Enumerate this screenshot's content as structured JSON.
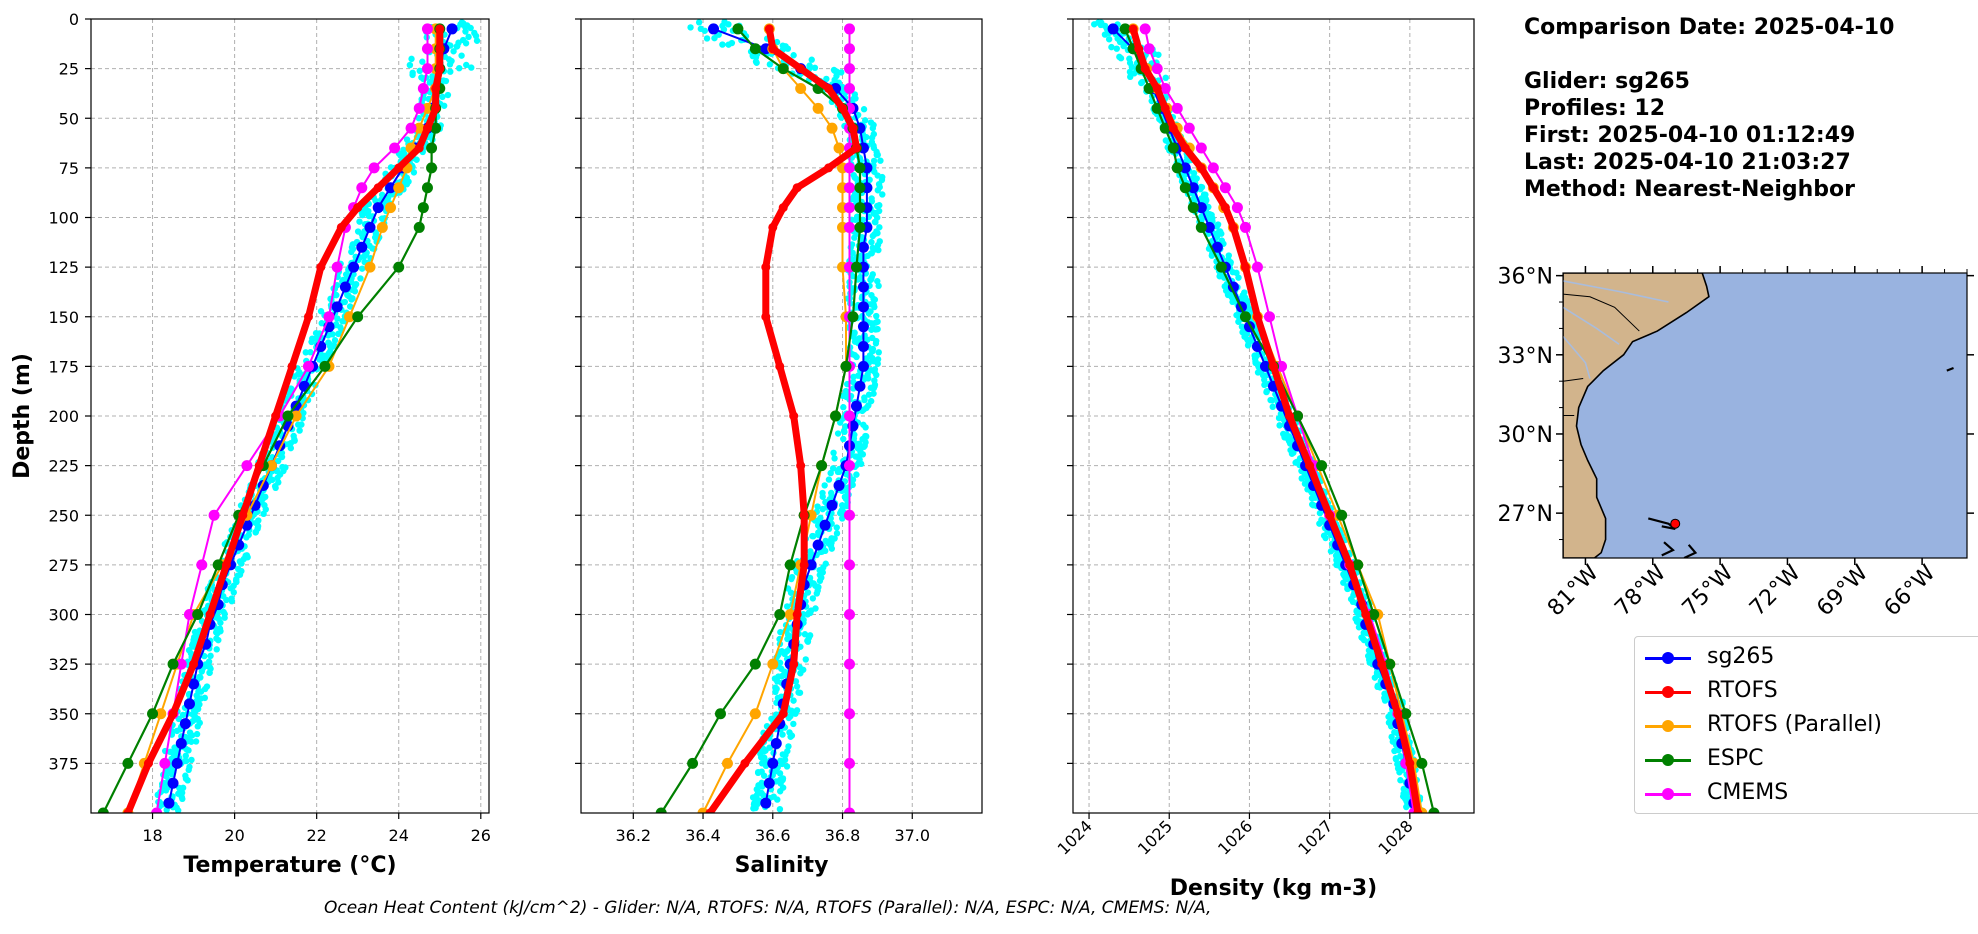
{
  "colors": {
    "glider": "#0000ff",
    "glider_scatter": "#00ffff",
    "rtofs": "#ff0000",
    "rtofs_parallel": "#ffa500",
    "espc": "#008000",
    "cmems": "#ff00ff",
    "ocean": "#99b3e0",
    "land": "#d2b48c",
    "grid": "#b0b0b0"
  },
  "info": {
    "comparison": "Comparison Date: 2025-04-10",
    "glider": "Glider: sg265",
    "profiles": "Profiles: 12",
    "first": "First: 2025-04-10 01:12:49",
    "last": "Last: 2025-04-10 21:03:27",
    "method": "Method: Nearest-Neighbor"
  },
  "footer": "Ocean Heat Content (kJ/cm^2) - Glider: N/A,  RTOFS: N/A,  RTOFS (Parallel): N/A,  ESPC: N/A,  CMEMS: N/A,",
  "legend": [
    {
      "label": "sg265",
      "color": "#0000ff"
    },
    {
      "label": "RTOFS",
      "color": "#ff0000"
    },
    {
      "label": "RTOFS (Parallel)",
      "color": "#ffa500"
    },
    {
      "label": "ESPC",
      "color": "#008000"
    },
    {
      "label": "CMEMS",
      "color": "#ff00ff"
    }
  ],
  "map": {
    "lat_labels": [
      "36°N",
      "33°N",
      "30°N",
      "27°N"
    ],
    "lat_values": [
      36,
      33,
      30,
      27
    ],
    "lon_labels": [
      "81°W",
      "78°W",
      "75°W",
      "72°W",
      "69°W",
      "66°W"
    ],
    "lon_values": [
      -81,
      -78,
      -75,
      -72,
      -69,
      -66
    ],
    "lon_range": [
      -82,
      -64
    ],
    "lat_range": [
      25.3,
      36.1
    ],
    "glider_position": {
      "lon": -77.0,
      "lat": 26.6
    }
  },
  "chart_data": [
    {
      "type": "line",
      "xlabel": "Temperature (°C)",
      "ylabel": "Depth (m)",
      "xlim": [
        16.5,
        26.2
      ],
      "ylim": [
        400,
        0
      ],
      "xticks": [
        18,
        20,
        22,
        24,
        26
      ],
      "yticks": [
        0,
        25,
        50,
        75,
        100,
        125,
        150,
        175,
        200,
        225,
        250,
        275,
        300,
        325,
        350,
        375
      ],
      "grid": true,
      "series": [
        {
          "name": "sg265",
          "depth": [
            5,
            15,
            25,
            35,
            45,
            55,
            65,
            75,
            85,
            95,
            105,
            115,
            125,
            135,
            145,
            155,
            165,
            175,
            185,
            195,
            205,
            215,
            225,
            235,
            245,
            255,
            265,
            275,
            285,
            295,
            305,
            315,
            325,
            335,
            345,
            355,
            365,
            375,
            385,
            395
          ],
          "values": [
            25.3,
            25.1,
            25.0,
            24.9,
            24.8,
            24.7,
            24.4,
            24.1,
            23.8,
            23.5,
            23.3,
            23.1,
            22.9,
            22.7,
            22.5,
            22.3,
            22.1,
            21.9,
            21.7,
            21.5,
            21.3,
            21.1,
            20.9,
            20.7,
            20.5,
            20.3,
            20.1,
            19.9,
            19.7,
            19.6,
            19.4,
            19.3,
            19.1,
            19.0,
            18.9,
            18.8,
            18.7,
            18.6,
            18.5,
            18.4
          ]
        },
        {
          "name": "RTOFS",
          "depth": [
            5,
            15,
            25,
            35,
            45,
            55,
            65,
            75,
            85,
            95,
            105,
            125,
            150,
            175,
            200,
            225,
            250,
            275,
            300,
            325,
            350,
            375,
            400
          ],
          "values": [
            25.0,
            25.0,
            25.0,
            24.9,
            24.9,
            24.7,
            24.5,
            24.0,
            23.5,
            23.0,
            22.6,
            22.1,
            21.8,
            21.4,
            21.0,
            20.6,
            20.2,
            19.8,
            19.4,
            19.0,
            18.5,
            17.9,
            17.4
          ]
        },
        {
          "name": "RTOFS (Parallel)",
          "depth": [
            5,
            15,
            25,
            35,
            45,
            55,
            65,
            75,
            85,
            95,
            105,
            125,
            150,
            175,
            200,
            225,
            250,
            275,
            300,
            325,
            350,
            375,
            400
          ],
          "values": [
            24.9,
            24.9,
            24.9,
            24.9,
            24.7,
            24.5,
            24.3,
            24.2,
            24.0,
            23.8,
            23.6,
            23.3,
            22.8,
            22.3,
            21.5,
            20.9,
            20.3,
            19.7,
            19.0,
            18.6,
            18.2,
            17.8,
            17.4
          ]
        },
        {
          "name": "ESPC",
          "depth": [
            5,
            15,
            25,
            35,
            45,
            55,
            65,
            75,
            85,
            95,
            105,
            125,
            150,
            175,
            200,
            225,
            250,
            275,
            300,
            325,
            350,
            375,
            400
          ],
          "values": [
            25.0,
            25.0,
            25.0,
            25.0,
            24.9,
            24.9,
            24.8,
            24.8,
            24.7,
            24.6,
            24.5,
            24.0,
            23.0,
            22.2,
            21.3,
            20.7,
            20.1,
            19.6,
            19.1,
            18.5,
            18.0,
            17.4,
            16.8
          ]
        },
        {
          "name": "CMEMS",
          "depth": [
            5,
            15,
            25,
            35,
            45,
            55,
            65,
            75,
            85,
            95,
            105,
            125,
            150,
            175,
            200,
            225,
            250,
            275,
            300,
            325,
            350,
            375,
            400
          ],
          "values": [
            24.7,
            24.7,
            24.7,
            24.6,
            24.5,
            24.3,
            23.9,
            23.4,
            23.1,
            22.9,
            22.7,
            22.5,
            22.3,
            21.8,
            21.1,
            20.3,
            19.5,
            19.2,
            18.9,
            18.7,
            18.5,
            18.3,
            18.1
          ]
        }
      ]
    },
    {
      "type": "line",
      "xlabel": "Salinity",
      "xlim": [
        36.05,
        37.2
      ],
      "ylim": [
        400,
        0
      ],
      "xticks": [
        36.2,
        36.4,
        36.6,
        36.8,
        37.0
      ],
      "grid": true,
      "series": [
        {
          "name": "sg265",
          "depth": [
            5,
            15,
            25,
            35,
            45,
            55,
            65,
            75,
            85,
            95,
            105,
            115,
            125,
            135,
            145,
            155,
            165,
            175,
            185,
            195,
            205,
            215,
            225,
            235,
            245,
            255,
            265,
            275,
            285,
            295,
            305,
            315,
            325,
            335,
            345,
            355,
            365,
            375,
            385,
            395
          ],
          "values": [
            36.43,
            36.58,
            36.68,
            36.78,
            36.83,
            36.85,
            36.86,
            36.87,
            36.87,
            36.87,
            36.87,
            36.86,
            36.86,
            36.86,
            36.86,
            36.86,
            36.86,
            36.86,
            36.85,
            36.84,
            36.83,
            36.82,
            36.81,
            36.79,
            36.77,
            36.75,
            36.73,
            36.71,
            36.69,
            36.68,
            36.67,
            36.66,
            36.65,
            36.64,
            36.63,
            36.62,
            36.61,
            36.6,
            36.59,
            36.58
          ]
        },
        {
          "name": "RTOFS",
          "depth": [
            5,
            15,
            25,
            35,
            45,
            55,
            65,
            75,
            85,
            95,
            105,
            125,
            150,
            175,
            200,
            225,
            250,
            275,
            300,
            325,
            350,
            375,
            400
          ],
          "values": [
            36.59,
            36.6,
            36.68,
            36.76,
            36.8,
            36.83,
            36.84,
            36.76,
            36.67,
            36.63,
            36.6,
            36.58,
            36.58,
            36.62,
            36.66,
            36.68,
            36.69,
            36.69,
            36.67,
            36.66,
            36.63,
            36.52,
            36.42
          ]
        },
        {
          "name": "RTOFS (Parallel)",
          "depth": [
            5,
            15,
            25,
            35,
            45,
            55,
            65,
            75,
            85,
            95,
            105,
            125,
            150,
            175,
            200,
            225,
            250,
            275,
            300,
            325,
            350,
            375,
            400
          ],
          "values": [
            36.59,
            36.6,
            36.63,
            36.68,
            36.73,
            36.77,
            36.79,
            36.8,
            36.8,
            36.8,
            36.8,
            36.8,
            36.81,
            36.81,
            36.78,
            36.74,
            36.71,
            36.68,
            36.65,
            36.6,
            36.55,
            36.47,
            36.4
          ]
        },
        {
          "name": "ESPC",
          "depth": [
            5,
            15,
            25,
            35,
            45,
            55,
            65,
            75,
            85,
            95,
            105,
            125,
            150,
            175,
            200,
            225,
            250,
            275,
            300,
            325,
            350,
            375,
            400
          ],
          "values": [
            36.5,
            36.55,
            36.63,
            36.73,
            36.8,
            36.83,
            36.84,
            36.85,
            36.85,
            36.85,
            36.85,
            36.84,
            36.83,
            36.81,
            36.78,
            36.74,
            36.69,
            36.65,
            36.62,
            36.55,
            36.45,
            36.37,
            36.28
          ]
        },
        {
          "name": "CMEMS",
          "depth": [
            5,
            15,
            25,
            35,
            45,
            55,
            65,
            75,
            85,
            95,
            105,
            125,
            150,
            175,
            200,
            225,
            250,
            275,
            300,
            325,
            350,
            375,
            400
          ],
          "values": [
            36.82,
            36.82,
            36.82,
            36.82,
            36.82,
            36.82,
            36.82,
            36.82,
            36.82,
            36.82,
            36.82,
            36.82,
            36.82,
            36.82,
            36.82,
            36.82,
            36.82,
            36.82,
            36.82,
            36.82,
            36.82,
            36.82,
            36.82
          ]
        }
      ]
    },
    {
      "type": "line",
      "xlabel": "Density (kg m-3)",
      "xlim": [
        1023.8,
        1028.8
      ],
      "ylim": [
        400,
        0
      ],
      "xticks": [
        1024,
        1025,
        1026,
        1027,
        1028
      ],
      "grid": true,
      "series": [
        {
          "name": "sg265",
          "depth": [
            5,
            15,
            25,
            35,
            45,
            55,
            65,
            75,
            85,
            95,
            105,
            115,
            125,
            135,
            145,
            155,
            165,
            175,
            185,
            195,
            205,
            215,
            225,
            235,
            245,
            255,
            265,
            275,
            285,
            295,
            305,
            315,
            325,
            335,
            345,
            355,
            365,
            375,
            385,
            395
          ],
          "values": [
            1024.3,
            1024.55,
            1024.7,
            1024.8,
            1024.9,
            1025.0,
            1025.1,
            1025.2,
            1025.3,
            1025.4,
            1025.5,
            1025.6,
            1025.7,
            1025.8,
            1025.9,
            1026.0,
            1026.1,
            1026.2,
            1026.3,
            1026.4,
            1026.5,
            1026.6,
            1026.7,
            1026.8,
            1026.9,
            1027.0,
            1027.1,
            1027.2,
            1027.3,
            1027.4,
            1027.45,
            1027.55,
            1027.6,
            1027.7,
            1027.8,
            1027.85,
            1027.9,
            1027.95,
            1028.0,
            1028.05
          ]
        },
        {
          "name": "RTOFS",
          "depth": [
            5,
            15,
            25,
            35,
            45,
            55,
            65,
            75,
            85,
            95,
            105,
            125,
            150,
            175,
            200,
            225,
            250,
            275,
            300,
            325,
            350,
            375,
            400
          ],
          "values": [
            1024.55,
            1024.62,
            1024.7,
            1024.85,
            1024.95,
            1025.05,
            1025.2,
            1025.4,
            1025.55,
            1025.7,
            1025.8,
            1025.95,
            1026.1,
            1026.3,
            1026.5,
            1026.75,
            1027.0,
            1027.25,
            1027.45,
            1027.65,
            1027.85,
            1028.0,
            1028.1
          ]
        },
        {
          "name": "RTOFS (Parallel)",
          "depth": [
            5,
            15,
            25,
            35,
            45,
            55,
            65,
            75,
            85,
            95,
            105,
            125,
            150,
            175,
            200,
            225,
            250,
            275,
            300,
            325,
            350,
            375,
            400
          ],
          "values": [
            1024.55,
            1024.6,
            1024.72,
            1024.85,
            1024.97,
            1025.1,
            1025.25,
            1025.4,
            1025.55,
            1025.68,
            1025.8,
            1025.95,
            1026.1,
            1026.35,
            1026.6,
            1026.85,
            1027.1,
            1027.35,
            1027.6,
            1027.75,
            1027.9,
            1028.05,
            1028.15
          ]
        },
        {
          "name": "ESPC",
          "depth": [
            5,
            15,
            25,
            35,
            45,
            55,
            65,
            75,
            85,
            95,
            105,
            125,
            150,
            175,
            200,
            225,
            250,
            275,
            300,
            325,
            350,
            375,
            400
          ],
          "values": [
            1024.45,
            1024.55,
            1024.65,
            1024.75,
            1024.85,
            1024.95,
            1025.05,
            1025.1,
            1025.2,
            1025.3,
            1025.4,
            1025.65,
            1025.95,
            1026.3,
            1026.6,
            1026.9,
            1027.15,
            1027.35,
            1027.55,
            1027.75,
            1027.95,
            1028.15,
            1028.3
          ]
        },
        {
          "name": "CMEMS",
          "depth": [
            5,
            15,
            25,
            35,
            45,
            55,
            65,
            75,
            85,
            95,
            105,
            125,
            150,
            175,
            200,
            225,
            250,
            275,
            300,
            325,
            350,
            375,
            400
          ],
          "values": [
            1024.7,
            1024.75,
            1024.85,
            1024.95,
            1025.1,
            1025.25,
            1025.4,
            1025.55,
            1025.7,
            1025.85,
            1025.95,
            1026.1,
            1026.25,
            1026.4,
            1026.6,
            1026.8,
            1027.0,
            1027.25,
            1027.5,
            1027.7,
            1027.85,
            1027.95,
            1028.05
          ]
        }
      ]
    }
  ]
}
